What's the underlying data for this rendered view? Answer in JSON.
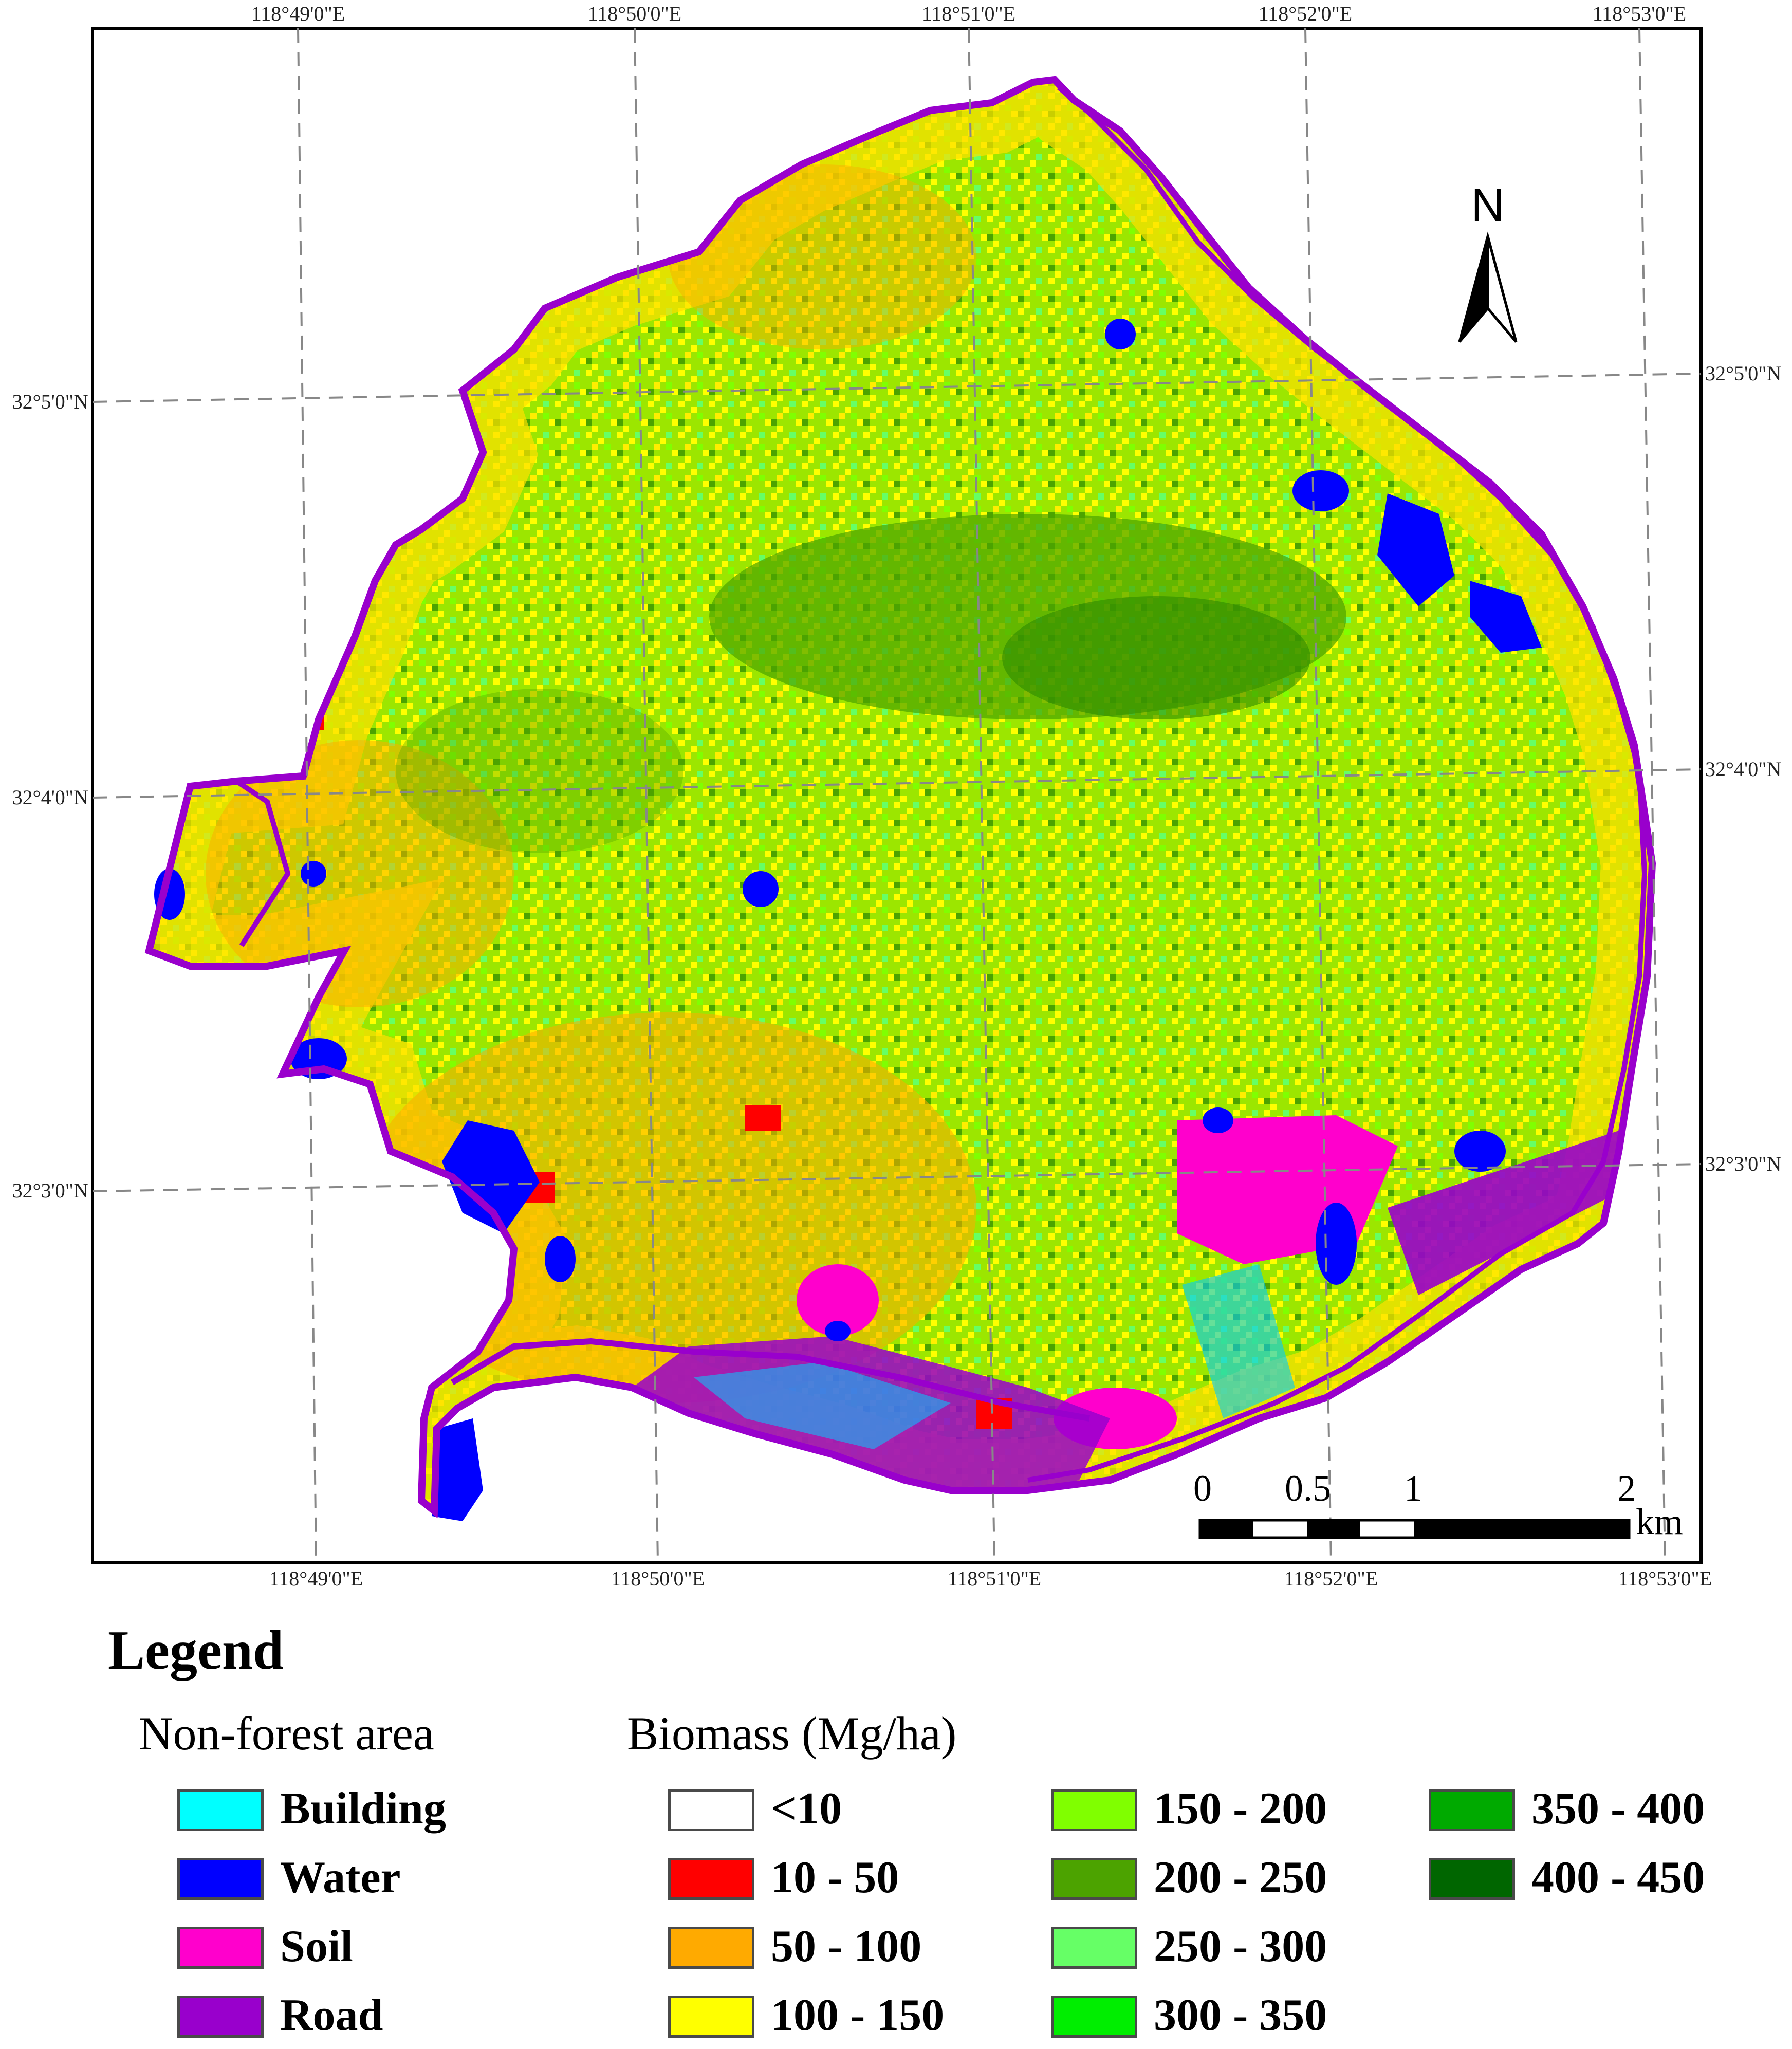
{
  "map": {
    "lon_labels_top": [
      "118°49'0\"E",
      "118°50'0\"E",
      "118°51'0\"E",
      "118°52'0\"E",
      "118°53'0\"E"
    ],
    "lon_labels_bottom": [
      "118°49'0\"E",
      "118°50'0\"E",
      "118°51'0\"E",
      "118°52'0\"E",
      "118°53'0\"E"
    ],
    "lat_labels_left": [
      "32°5'0\"N",
      "32°4'0\"N",
      "32°3'0\"N"
    ],
    "lat_labels_right": [
      "32°5'0\"N",
      "32°4'0\"N",
      "32°3'0\"N"
    ],
    "north_arrow": {
      "label": "N",
      "icon": "north-arrow-icon"
    },
    "scale_bar": {
      "ticks": [
        "0",
        "0.5",
        "1",
        "2"
      ],
      "unit": "km"
    }
  },
  "legend": {
    "title": "Legend",
    "non_forest": {
      "title": "Non-forest area",
      "items": [
        {
          "label": "Building",
          "color": "#00FFFF"
        },
        {
          "label": "Water",
          "color": "#0000FF"
        },
        {
          "label": "Soil",
          "color": "#FF00CC"
        },
        {
          "label": "Road",
          "color": "#9900CC"
        }
      ]
    },
    "biomass": {
      "title": "Biomass (Mg/ha)",
      "items": [
        {
          "label": "<10",
          "color": "#FFFFFF"
        },
        {
          "label": "10 - 50",
          "color": "#FF0000"
        },
        {
          "label": "50 - 100",
          "color": "#FFAA00"
        },
        {
          "label": "100 - 150",
          "color": "#FFFF00"
        },
        {
          "label": "150 - 200",
          "color": "#80FF00"
        },
        {
          "label": "200 - 250",
          "color": "#4CA300"
        },
        {
          "label": "250 - 300",
          "color": "#66FF66"
        },
        {
          "label": "300 - 350",
          "color": "#00EE00"
        },
        {
          "label": "350 - 400",
          "color": "#00AA00"
        },
        {
          "label": "400 - 450",
          "color": "#006600"
        }
      ]
    }
  }
}
